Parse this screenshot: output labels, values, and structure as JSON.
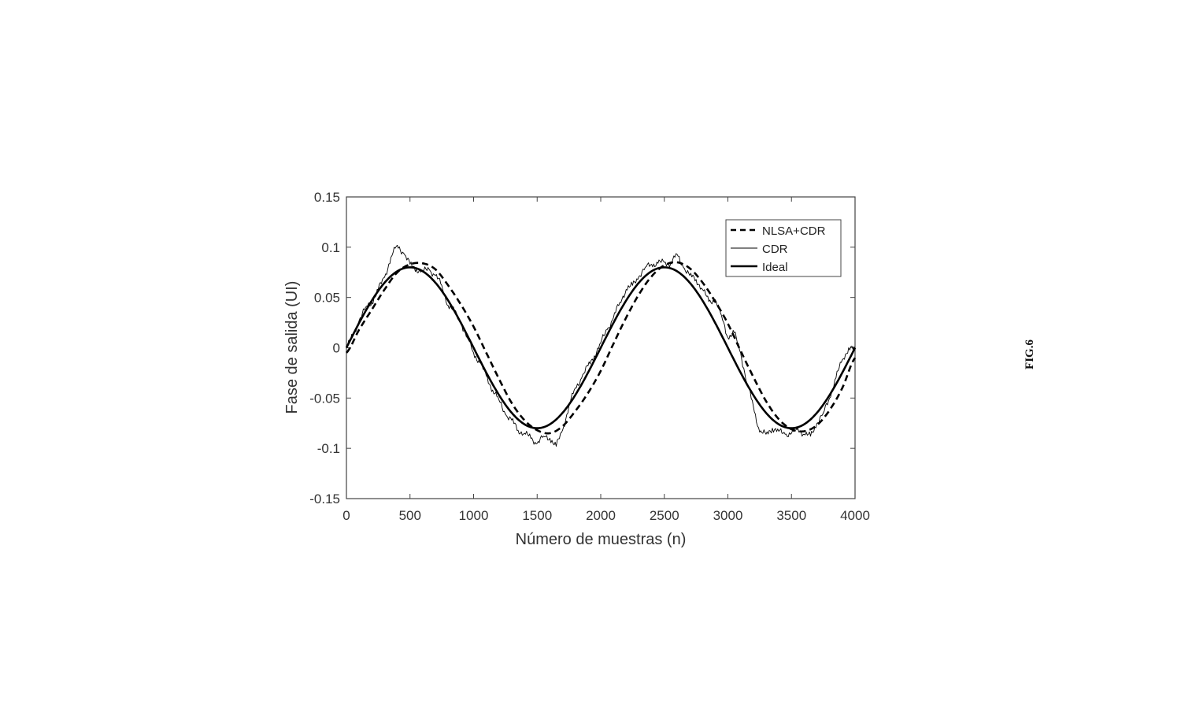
{
  "figure_label": "FIG.6",
  "chart_data": {
    "type": "line",
    "title": "",
    "xlabel": "Número de muestras (n)",
    "ylabel": "Fase de salida (UI)",
    "xlim": [
      0,
      4000
    ],
    "ylim": [
      -0.15,
      0.15
    ],
    "xticks": [
      0,
      500,
      1000,
      1500,
      2000,
      2500,
      3000,
      3500,
      4000
    ],
    "yticks": [
      -0.15,
      -0.1,
      -0.05,
      0,
      0.05,
      0.1,
      0.15
    ],
    "xtick_labels": [
      "0",
      "500",
      "1000",
      "1500",
      "2000",
      "2500",
      "3000",
      "3500",
      "4000"
    ],
    "ytick_labels": [
      "-0.15",
      "-0.1",
      "-0.05",
      "0",
      "0.05",
      "0.1",
      "0.15"
    ],
    "grid": false,
    "legend_position": "top-right",
    "legend": [
      "NLSA+CDR",
      "CDR",
      "Ideal"
    ],
    "series": [
      {
        "name": "NLSA+CDR",
        "style": "dashed",
        "color": "#000000",
        "x": [
          0,
          100,
          200,
          300,
          400,
          500,
          600,
          700,
          800,
          900,
          1000,
          1100,
          1200,
          1300,
          1400,
          1500,
          1600,
          1700,
          1800,
          1900,
          2000,
          2100,
          2200,
          2300,
          2400,
          2500,
          2600,
          2700,
          2800,
          2900,
          3000,
          3100,
          3200,
          3300,
          3400,
          3500,
          3600,
          3700,
          3800,
          3900,
          4000
        ],
        "y": [
          -0.005,
          0.018,
          0.038,
          0.058,
          0.075,
          0.083,
          0.084,
          0.078,
          0.062,
          0.043,
          0.021,
          -0.005,
          -0.031,
          -0.055,
          -0.072,
          -0.082,
          -0.085,
          -0.078,
          -0.063,
          -0.045,
          -0.023,
          0.004,
          0.03,
          0.053,
          0.071,
          0.082,
          0.085,
          0.079,
          0.065,
          0.046,
          0.024,
          -0.003,
          -0.029,
          -0.053,
          -0.071,
          -0.081,
          -0.083,
          -0.077,
          -0.062,
          -0.04,
          -0.01
        ]
      },
      {
        "name": "CDR",
        "style": "thin",
        "color": "#000000",
        "x": [
          0,
          50,
          100,
          150,
          200,
          250,
          300,
          350,
          400,
          450,
          500,
          550,
          600,
          650,
          700,
          750,
          800,
          850,
          900,
          950,
          1000,
          1050,
          1100,
          1150,
          1200,
          1250,
          1300,
          1350,
          1400,
          1450,
          1500,
          1550,
          1600,
          1650,
          1700,
          1750,
          1800,
          1850,
          1900,
          1950,
          2000,
          2050,
          2100,
          2150,
          2200,
          2250,
          2300,
          2350,
          2400,
          2450,
          2500,
          2550,
          2600,
          2650,
          2700,
          2750,
          2800,
          2850,
          2900,
          2950,
          3000,
          3050,
          3100,
          3150,
          3200,
          3250,
          3300,
          3350,
          3400,
          3450,
          3500,
          3550,
          3600,
          3650,
          3700,
          3750,
          3800,
          3850,
          3900,
          3950,
          4000
        ],
        "y": [
          0.0,
          0.012,
          0.027,
          0.04,
          0.045,
          0.058,
          0.07,
          0.09,
          0.102,
          0.094,
          0.083,
          0.078,
          0.076,
          0.078,
          0.072,
          0.062,
          0.042,
          0.036,
          0.025,
          0.01,
          -0.005,
          -0.015,
          -0.028,
          -0.042,
          -0.052,
          -0.066,
          -0.072,
          -0.082,
          -0.085,
          -0.09,
          -0.095,
          -0.088,
          -0.09,
          -0.098,
          -0.082,
          -0.058,
          -0.04,
          -0.03,
          -0.018,
          -0.008,
          0.005,
          0.018,
          0.03,
          0.045,
          0.058,
          0.062,
          0.071,
          0.08,
          0.083,
          0.084,
          0.085,
          0.084,
          0.093,
          0.08,
          0.072,
          0.068,
          0.058,
          0.046,
          0.048,
          0.032,
          0.01,
          0.015,
          -0.005,
          -0.035,
          -0.058,
          -0.084,
          -0.086,
          -0.08,
          -0.083,
          -0.086,
          -0.085,
          -0.08,
          -0.086,
          -0.088,
          -0.075,
          -0.065,
          -0.05,
          -0.03,
          -0.012,
          0.0,
          -0.002
        ]
      },
      {
        "name": "Ideal",
        "style": "thick",
        "color": "#000000",
        "amplitude": 0.08,
        "period": 2000,
        "x": [
          0,
          100,
          200,
          300,
          400,
          500,
          600,
          700,
          800,
          900,
          1000,
          1100,
          1200,
          1300,
          1400,
          1500,
          1600,
          1700,
          1800,
          1900,
          2000,
          2100,
          2200,
          2300,
          2400,
          2500,
          2600,
          2700,
          2800,
          2900,
          3000,
          3100,
          3200,
          3300,
          3400,
          3500,
          3600,
          3700,
          3800,
          3900,
          4000
        ],
        "y": [
          0.0,
          0.0247,
          0.047,
          0.0647,
          0.0761,
          0.08,
          0.0761,
          0.0647,
          0.047,
          0.0247,
          0.0,
          -0.0247,
          -0.047,
          -0.0647,
          -0.0761,
          -0.08,
          -0.0761,
          -0.0647,
          -0.047,
          -0.0247,
          0.0,
          0.0247,
          0.047,
          0.0647,
          0.0761,
          0.08,
          0.0761,
          0.0647,
          0.047,
          0.0247,
          0.0,
          -0.0247,
          -0.047,
          -0.0647,
          -0.0761,
          -0.08,
          -0.0761,
          -0.0647,
          -0.047,
          -0.0247,
          0.0
        ]
      }
    ]
  }
}
